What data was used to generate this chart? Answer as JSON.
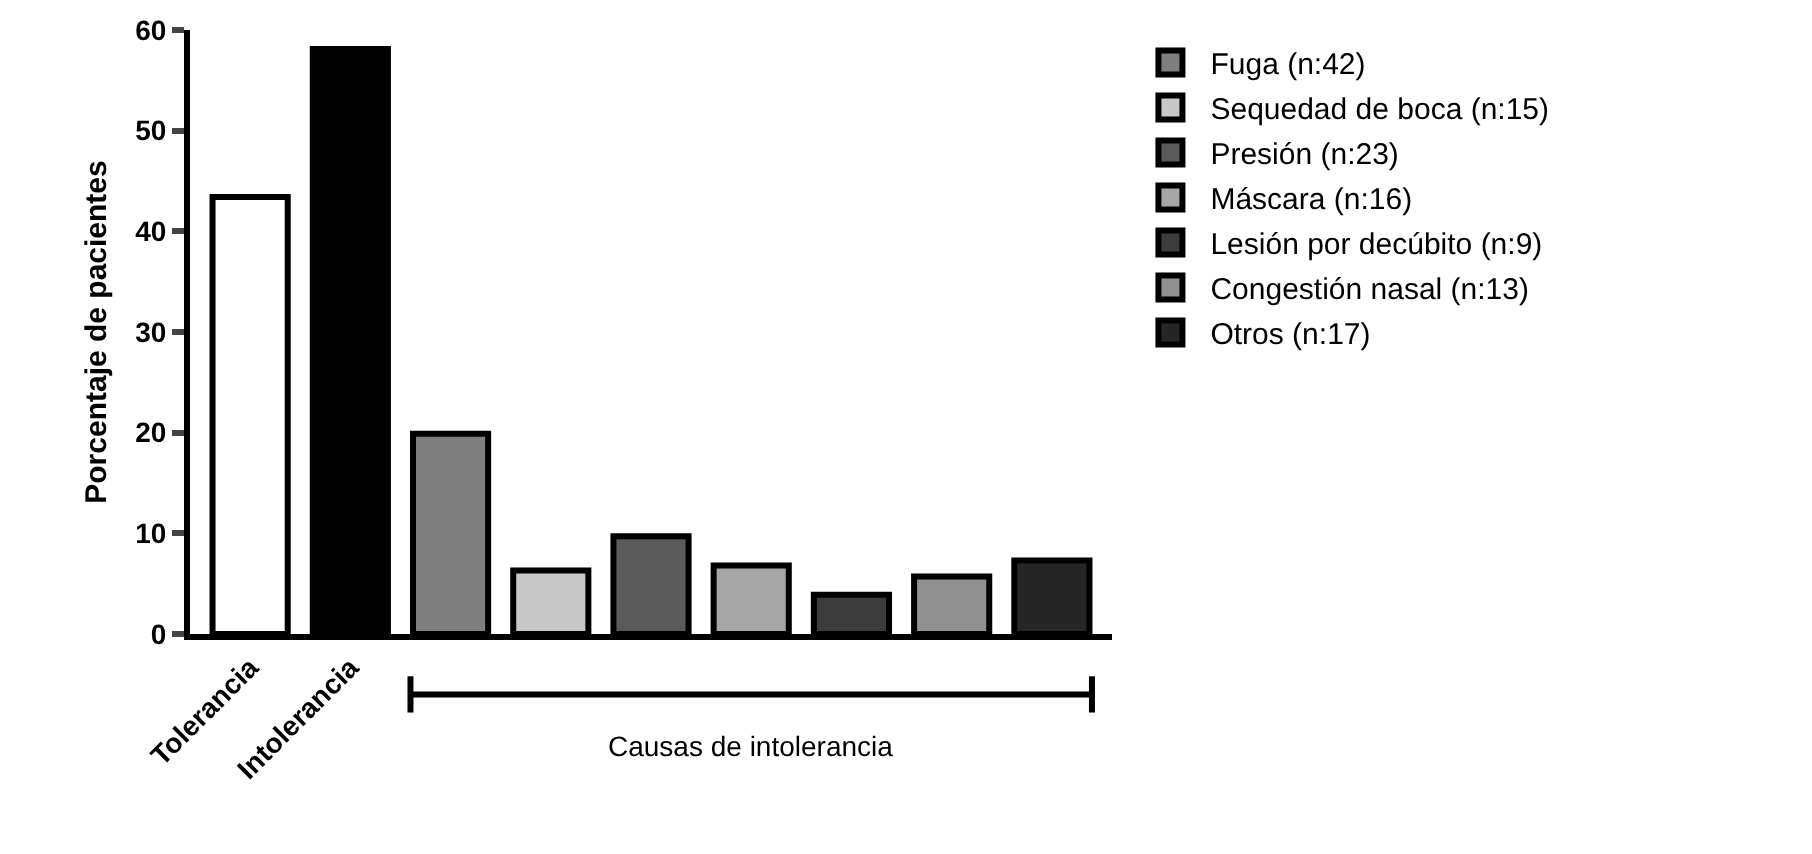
{
  "chart_data": {
    "type": "bar",
    "ylabel": "Porcentaje de pacientes",
    "categories": [
      "Tolerancia",
      "Intolerancia",
      null,
      null,
      null,
      null,
      null,
      null,
      null
    ],
    "series": [
      {
        "colors": [
          "#ffffff",
          "#000000",
          null,
          null,
          null,
          null,
          null,
          null,
          null
        ],
        "values": [
          43.4,
          58.1,
          null,
          null,
          null,
          null,
          null,
          null,
          null
        ]
      },
      {
        "name": "Fuga (n:42)",
        "color": "#7f7f7f",
        "values": [
          null,
          null,
          19.9,
          null,
          null,
          null,
          null,
          null,
          null
        ]
      },
      {
        "name": "Sequedad de boca (n:15)",
        "color": "#c8c8c8",
        "values": [
          null,
          null,
          null,
          6.3,
          null,
          null,
          null,
          null,
          null
        ]
      },
      {
        "name": "Presión (n:23)",
        "color": "#5a5a5a",
        "values": [
          null,
          null,
          null,
          null,
          9.7,
          null,
          null,
          null,
          null
        ]
      },
      {
        "name": "Máscara (n:16)",
        "color": "#a6a6a6",
        "values": [
          null,
          null,
          null,
          null,
          null,
          6.8,
          null,
          null,
          null
        ]
      },
      {
        "name": "Lesión por decúbito (n:9)",
        "color": "#3c3c3c",
        "values": [
          null,
          null,
          null,
          null,
          null,
          null,
          3.9,
          null,
          null
        ]
      },
      {
        "name": "Congestión nasal (n:13)",
        "color": "#909090",
        "values": [
          null,
          null,
          null,
          null,
          null,
          null,
          null,
          5.7,
          null
        ]
      },
      {
        "name": "Otros (n:17)",
        "color": "#262626",
        "values": [
          null,
          null,
          null,
          null,
          null,
          null,
          null,
          null,
          7.3
        ]
      }
    ],
    "ylim": [
      0,
      60
    ],
    "yticks": [
      0,
      10,
      20,
      30,
      40,
      50,
      60
    ],
    "grid": false,
    "legend": "right",
    "annotations": [
      "Causas de intolerancia"
    ]
  }
}
